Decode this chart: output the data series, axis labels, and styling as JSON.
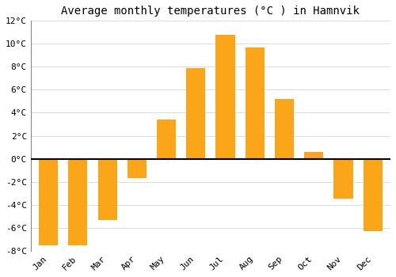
{
  "title": "Average monthly temperatures (°C ) in Hamnvik",
  "months": [
    "Jan",
    "Feb",
    "Mar",
    "Apr",
    "May",
    "Jun",
    "Jul",
    "Aug",
    "Sep",
    "Oct",
    "Nov",
    "Dec"
  ],
  "values": [
    -7.5,
    -7.5,
    -5.3,
    -1.7,
    3.4,
    7.9,
    10.8,
    9.7,
    5.2,
    0.6,
    -3.5,
    -6.3
  ],
  "ylim": [
    -8,
    12
  ],
  "yticks": [
    -8,
    -6,
    -4,
    -2,
    0,
    2,
    4,
    6,
    8,
    10,
    12
  ],
  "ytick_labels": [
    "-8°C",
    "-6°C",
    "-4°C",
    "-2°C",
    "0°C",
    "2°C",
    "4°C",
    "6°C",
    "8°C",
    "10°C",
    "12°C"
  ],
  "grid_color": "#dddddd",
  "background_color": "#ffffff",
  "bar_color": "#FBA518",
  "zero_line_color": "#000000",
  "title_fontsize": 10,
  "tick_fontsize": 8,
  "left_spine_color": "#888888"
}
